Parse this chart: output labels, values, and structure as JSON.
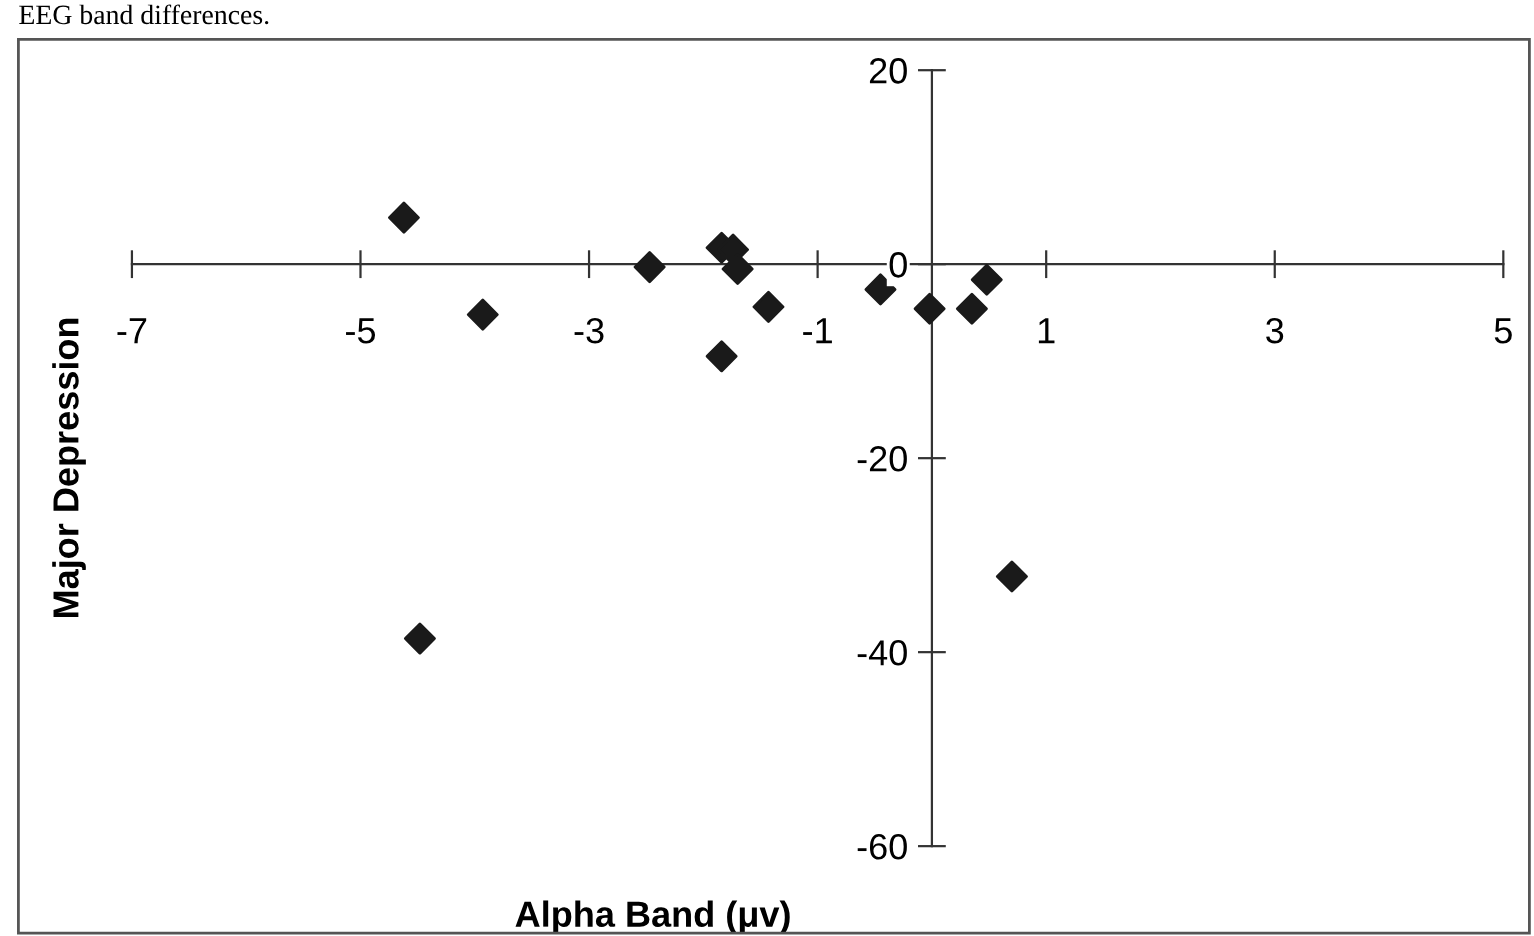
{
  "chart_data": {
    "type": "scatter",
    "xlabel": "Alpha Band (μv)",
    "ylabel": "Major Depression",
    "annotations": [
      "EEG band differences."
    ],
    "x": [
      -4.62,
      -3.93,
      -2.47,
      -1.84,
      -1.74,
      -1.7,
      -1.84,
      -1.43,
      -0.45,
      -0.02,
      0.35,
      0.48,
      -4.48,
      0.7
    ],
    "series": [
      {
        "color": "#1a1a1a",
        "values": [
          4.8,
          -5.2,
          -0.3,
          1.7,
          1.5,
          -0.5,
          -9.5,
          -4.4,
          -2.6,
          -4.6,
          -4.6,
          -1.6,
          -38.6,
          -32.2
        ]
      }
    ],
    "xlim": [
      -7,
      5
    ],
    "xticks": [
      -7,
      -5,
      -3,
      -1,
      1,
      3,
      5
    ],
    "ylim": [
      -60,
      20
    ],
    "yticks": [
      -60,
      -40,
      -20,
      0,
      20
    ],
    "marker": "diamond",
    "grid": false
  }
}
